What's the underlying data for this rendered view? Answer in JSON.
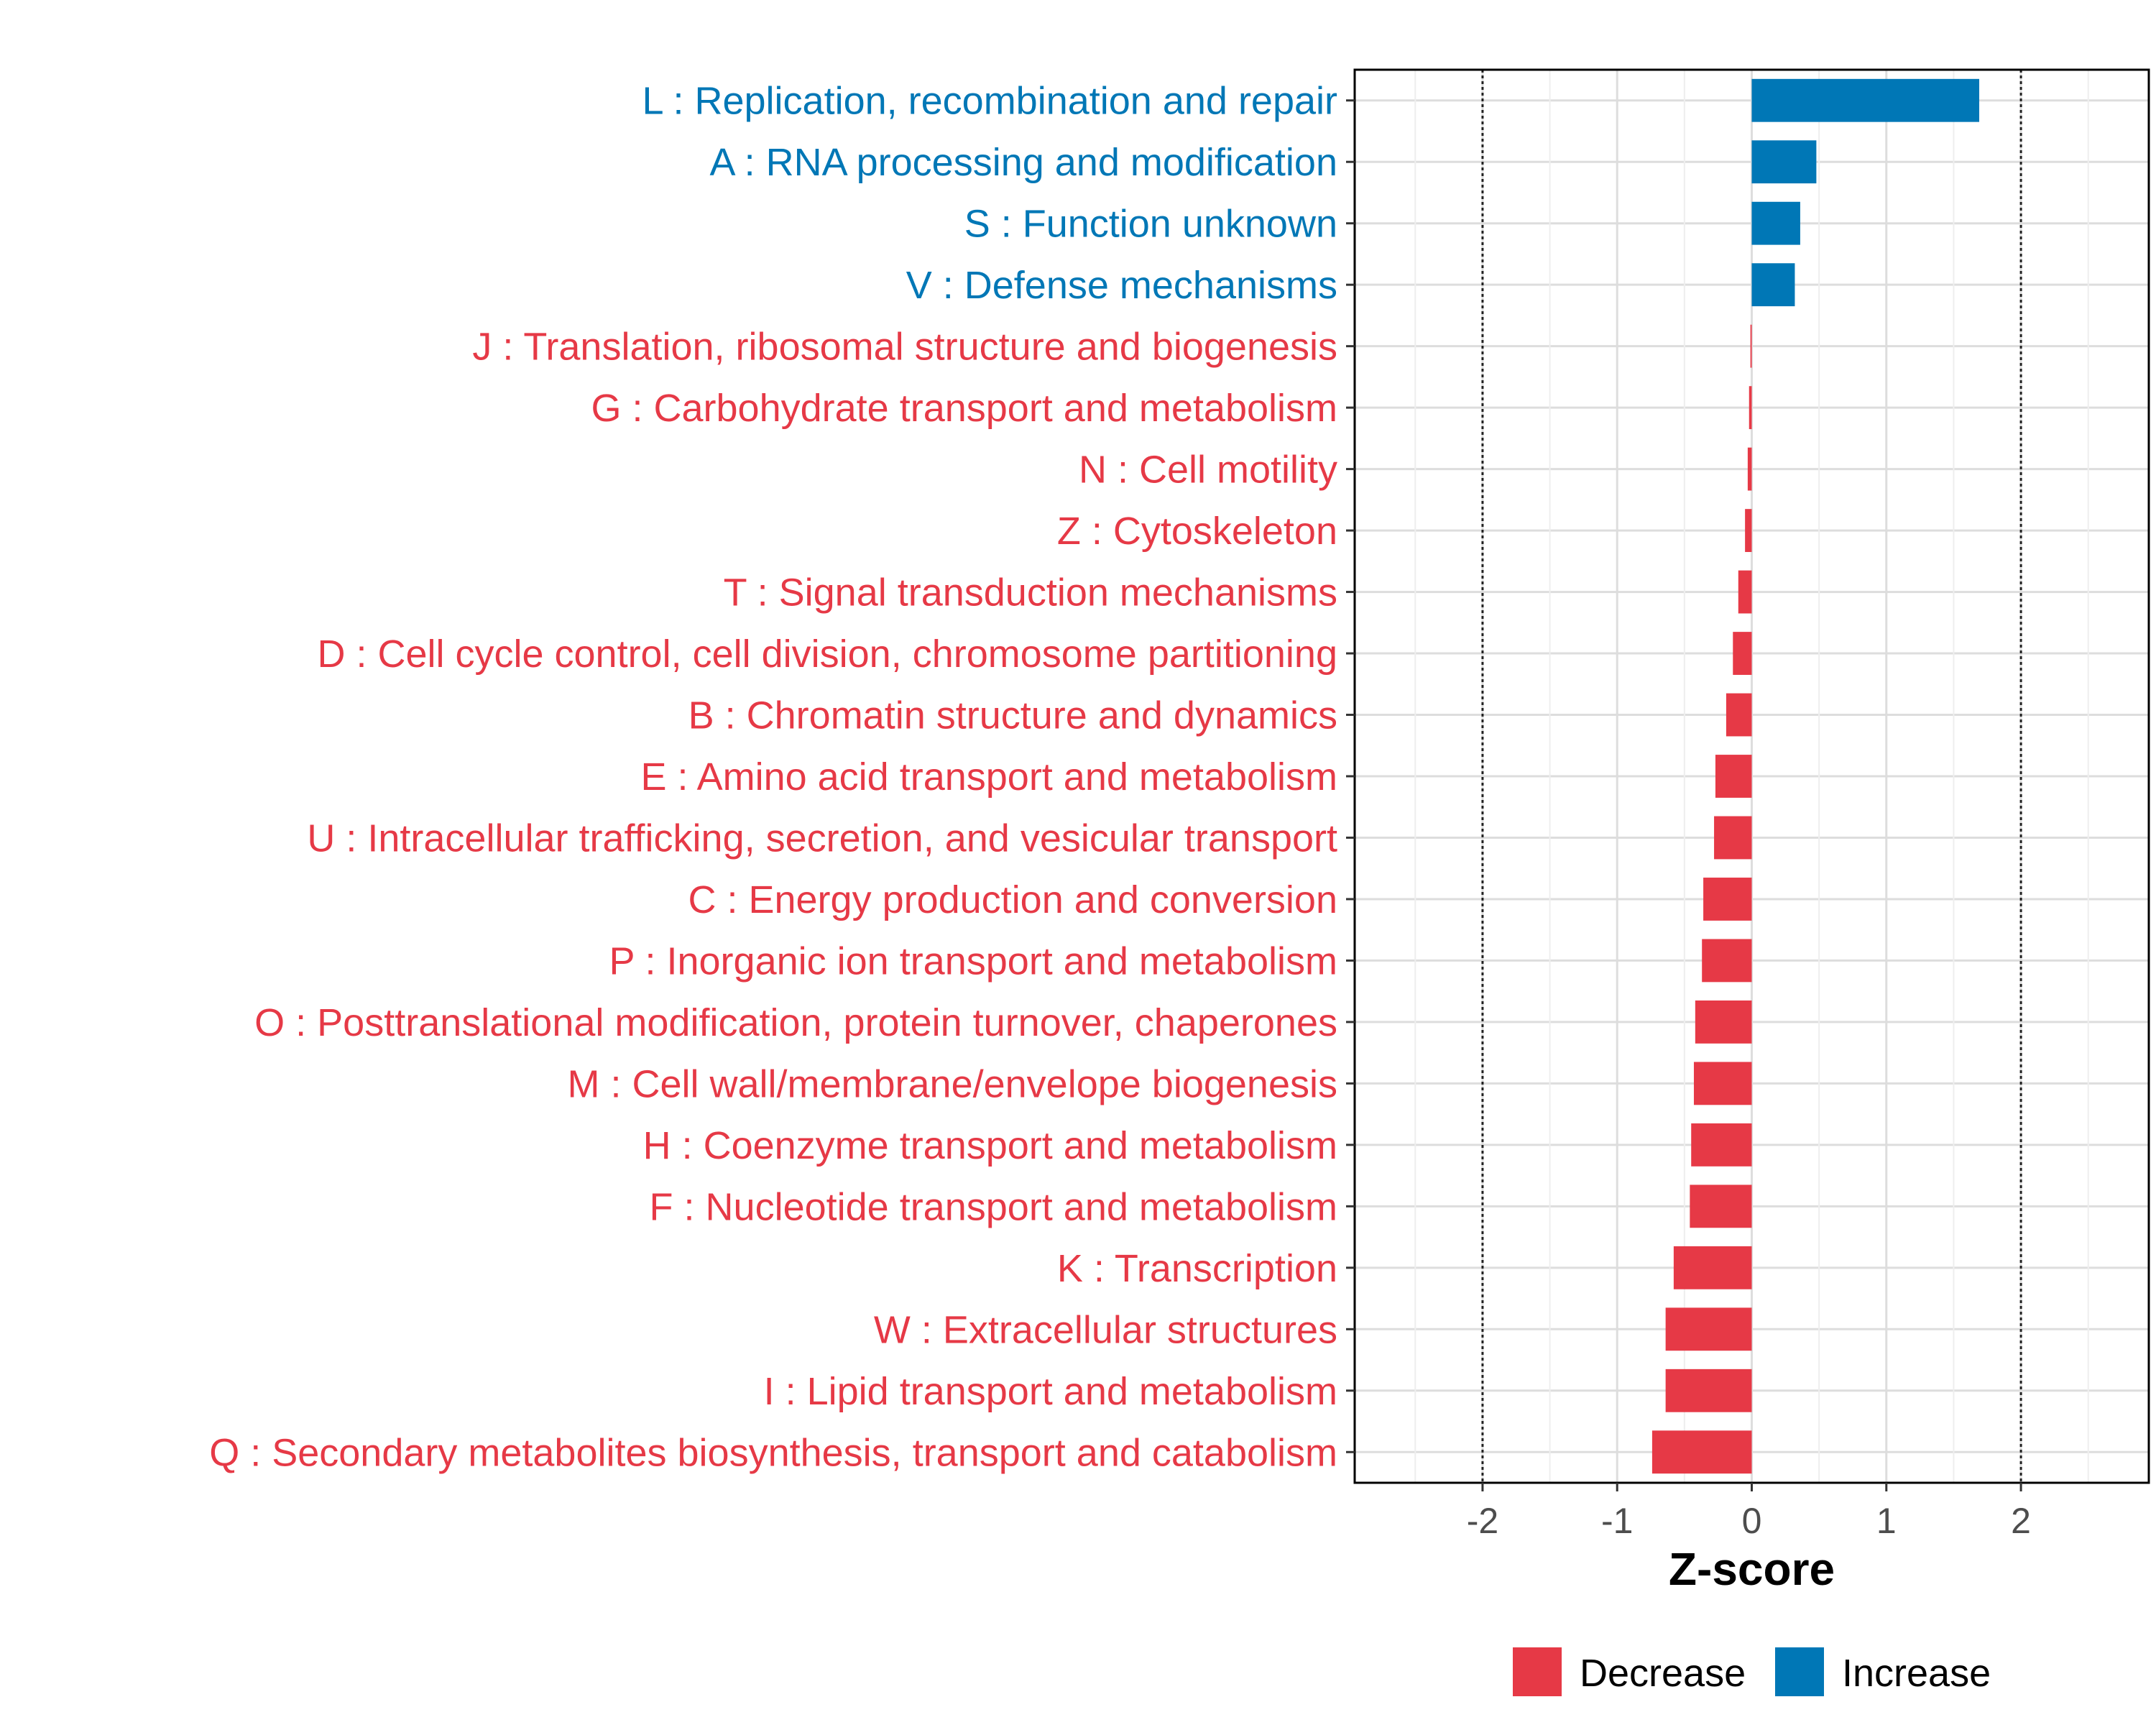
{
  "chart_data": {
    "type": "bar",
    "orientation": "horizontal",
    "xlabel": "Z-score",
    "xlim": [
      -2.95,
      2.95
    ],
    "xticks": [
      -2,
      -1,
      0,
      1,
      2
    ],
    "xtick_labels": [
      "-2",
      "-1",
      "0",
      "1",
      "2"
    ],
    "reference_lines": [
      -2,
      2
    ],
    "grid": true,
    "legend_position": "bottom",
    "colors": {
      "Decrease": "#e63946",
      "Increase": "#0077b6"
    },
    "legend": [
      {
        "name": "Decrease",
        "color": "#e63946"
      },
      {
        "name": "Increase",
        "color": "#0077b6"
      }
    ],
    "categories": [
      "L : Replication, recombination and repair",
      "A : RNA processing and modification",
      "S : Function unknown",
      "V : Defense mechanisms",
      "J : Translation, ribosomal structure and biogenesis",
      "G : Carbohydrate transport and metabolism",
      "N : Cell motility",
      "Z : Cytoskeleton",
      "T : Signal transduction mechanisms",
      "D : Cell cycle control, cell division, chromosome partitioning",
      "B : Chromatin structure and dynamics",
      "E : Amino acid transport and metabolism",
      "U : Intracellular trafficking, secretion, and vesicular transport",
      "C : Energy production and conversion",
      "P : Inorganic ion transport and metabolism",
      "O : Posttranslational modification, protein turnover, chaperones",
      "M : Cell wall/membrane/envelope biogenesis",
      "H : Coenzyme transport and metabolism",
      "F : Nucleotide transport and metabolism",
      "K : Transcription",
      "W : Extracellular structures",
      "I : Lipid transport and metabolism",
      "Q : Secondary metabolites biosynthesis, transport and catabolism"
    ],
    "values": [
      1.69,
      0.48,
      0.36,
      0.32,
      -0.01,
      -0.02,
      -0.03,
      -0.05,
      -0.1,
      -0.14,
      -0.19,
      -0.27,
      -0.28,
      -0.36,
      -0.37,
      -0.42,
      -0.43,
      -0.45,
      -0.46,
      -0.58,
      -0.64,
      -0.64,
      -0.74
    ],
    "groups": [
      "Increase",
      "Increase",
      "Increase",
      "Increase",
      "Decrease",
      "Decrease",
      "Decrease",
      "Decrease",
      "Decrease",
      "Decrease",
      "Decrease",
      "Decrease",
      "Decrease",
      "Decrease",
      "Decrease",
      "Decrease",
      "Decrease",
      "Decrease",
      "Decrease",
      "Decrease",
      "Decrease",
      "Decrease",
      "Decrease"
    ]
  }
}
